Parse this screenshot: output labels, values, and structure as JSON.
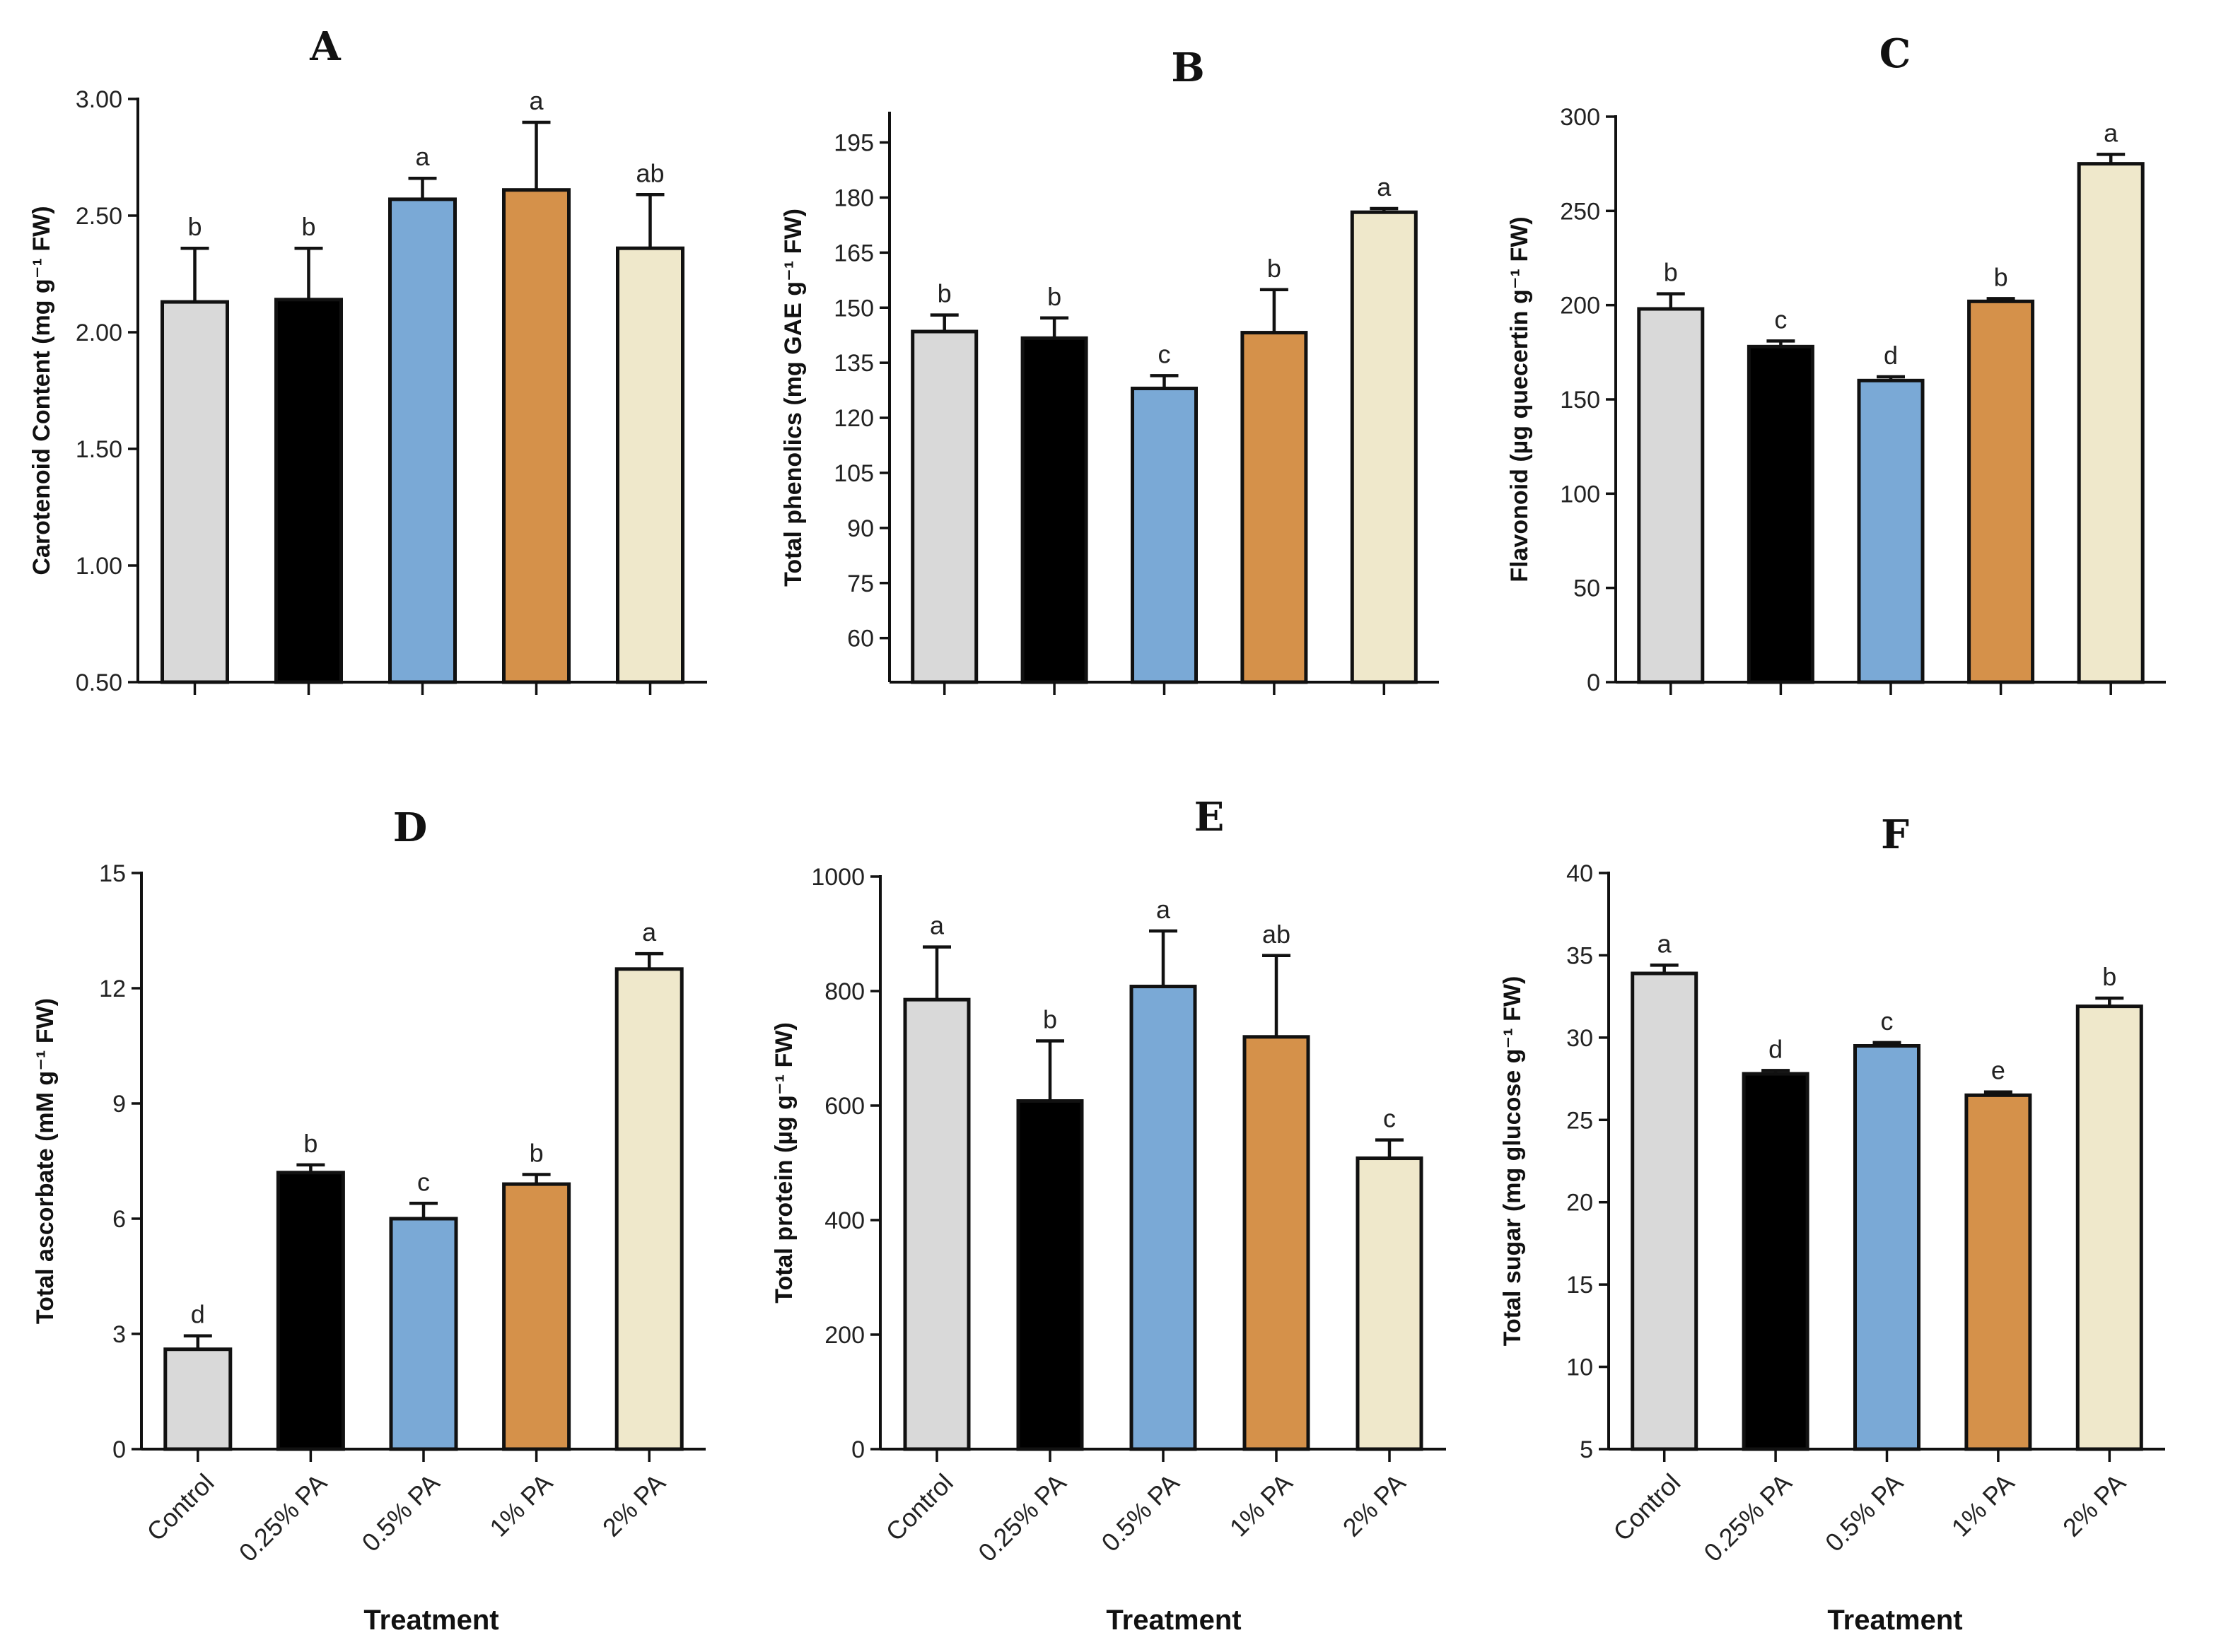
{
  "bar_colors": [
    "#d9d9d9",
    "#000000",
    "#7aa9d6",
    "#d5914a",
    "#efe8cb"
  ],
  "x_axis_title": "Treatment",
  "chart_data": [
    {
      "id": "A",
      "type": "bar",
      "title": "A",
      "ylabel": "Carotenoid Content (mg g⁻¹ FW)",
      "xlabel": "",
      "categories": [
        "Control",
        "0.25% PA",
        "0.5% PA",
        "1% PA",
        "2% PA"
      ],
      "values": [
        2.13,
        2.14,
        2.57,
        2.61,
        2.36
      ],
      "errors": [
        0.23,
        0.22,
        0.09,
        0.29,
        0.23
      ],
      "significance": [
        "b",
        "b",
        "a",
        "a",
        "ab"
      ],
      "ylim": [
        0.5,
        3.0
      ],
      "yticks": [
        0.5,
        1.0,
        1.5,
        2.0,
        2.5,
        3.0
      ],
      "ytick_labels": [
        "0.50",
        "1.00",
        "1.50",
        "2.00",
        "2.50",
        "3.00"
      ],
      "show_category_labels": false
    },
    {
      "id": "B",
      "type": "bar",
      "title": "B",
      "ylabel": "Total phenolics (mg GAE g⁻¹ FW)",
      "xlabel": "",
      "categories": [
        "Control",
        "0.25% PA",
        "0.5% PA",
        "1% PA",
        "2% PA"
      ],
      "values": [
        143.5,
        141.7,
        128.0,
        143.2,
        176.0
      ],
      "errors": [
        4.5,
        5.5,
        3.5,
        11.7,
        1.0
      ],
      "significance": [
        "b",
        "b",
        "c",
        "b",
        "a"
      ],
      "ylim": [
        48,
        203
      ],
      "yticks": [
        60,
        75,
        90,
        105,
        120,
        135,
        150,
        165,
        180,
        195
      ],
      "ytick_labels": [
        "60",
        "75",
        "90",
        "105",
        "120",
        "135",
        "150",
        "165",
        "180",
        "195"
      ],
      "show_category_labels": false
    },
    {
      "id": "C",
      "type": "bar",
      "title": "C",
      "ylabel": "Flavonoid (µg quecertin g⁻¹ FW)",
      "xlabel": "",
      "categories": [
        "Control",
        "0.25% PA",
        "0.5% PA",
        "1% PA",
        "2% PA"
      ],
      "values": [
        198,
        178,
        160,
        202,
        275
      ],
      "errors": [
        8,
        3,
        2,
        1.5,
        5
      ],
      "significance": [
        "b",
        "c",
        "d",
        "b",
        "a"
      ],
      "ylim": [
        0,
        300
      ],
      "yticks": [
        0,
        50,
        100,
        150,
        200,
        250,
        300
      ],
      "ytick_labels": [
        "0",
        "50",
        "100",
        "150",
        "200",
        "250",
        "300"
      ],
      "show_category_labels": false
    },
    {
      "id": "D",
      "type": "bar",
      "title": "D",
      "ylabel": "Total ascorbate (mM g⁻¹ FW)",
      "xlabel": "Treatment",
      "categories": [
        "Control",
        "0.25% PA",
        "0.5% PA",
        "1% PA",
        "2% PA"
      ],
      "values": [
        2.6,
        7.2,
        6.0,
        6.9,
        12.5
      ],
      "errors": [
        0.35,
        0.2,
        0.4,
        0.25,
        0.4
      ],
      "significance": [
        "d",
        "b",
        "c",
        "b",
        "a"
      ],
      "ylim": [
        0,
        15
      ],
      "yticks": [
        0,
        3,
        6,
        9,
        12,
        15
      ],
      "ytick_labels": [
        "0",
        "3",
        "6",
        "9",
        "12",
        "15"
      ],
      "show_category_labels": true
    },
    {
      "id": "E",
      "type": "bar",
      "title": "E",
      "ylabel": "Total protein (µg g⁻¹ FW)",
      "xlabel": "Treatment",
      "categories": [
        "Control",
        "0.25% PA",
        "0.5% PA",
        "1% PA",
        "2% PA"
      ],
      "values": [
        785,
        608,
        808,
        720,
        508
      ],
      "errors": [
        92,
        105,
        97,
        142,
        32
      ],
      "significance": [
        "a",
        "b",
        "a",
        "ab",
        "c"
      ],
      "ylim": [
        0,
        1000
      ],
      "yticks": [
        0,
        200,
        400,
        600,
        800,
        1000
      ],
      "ytick_labels": [
        "0",
        "200",
        "400",
        "600",
        "800",
        "1000"
      ],
      "show_category_labels": true
    },
    {
      "id": "F",
      "type": "bar",
      "title": "F",
      "ylabel": "Total sugar (mg glucose g⁻¹ FW)",
      "xlabel": "Treatment",
      "categories": [
        "Control",
        "0.25% PA",
        "0.5% PA",
        "1% PA",
        "2% PA"
      ],
      "values": [
        33.9,
        27.8,
        29.5,
        26.5,
        31.9
      ],
      "errors": [
        0.5,
        0.2,
        0.2,
        0.2,
        0.5
      ],
      "significance": [
        "a",
        "d",
        "c",
        "e",
        "b"
      ],
      "ylim": [
        5,
        40
      ],
      "yticks": [
        5,
        10,
        15,
        20,
        25,
        30,
        35,
        40
      ],
      "ytick_labels": [
        "5",
        "10",
        "15",
        "20",
        "25",
        "30",
        "35",
        "40"
      ],
      "show_category_labels": true
    }
  ]
}
